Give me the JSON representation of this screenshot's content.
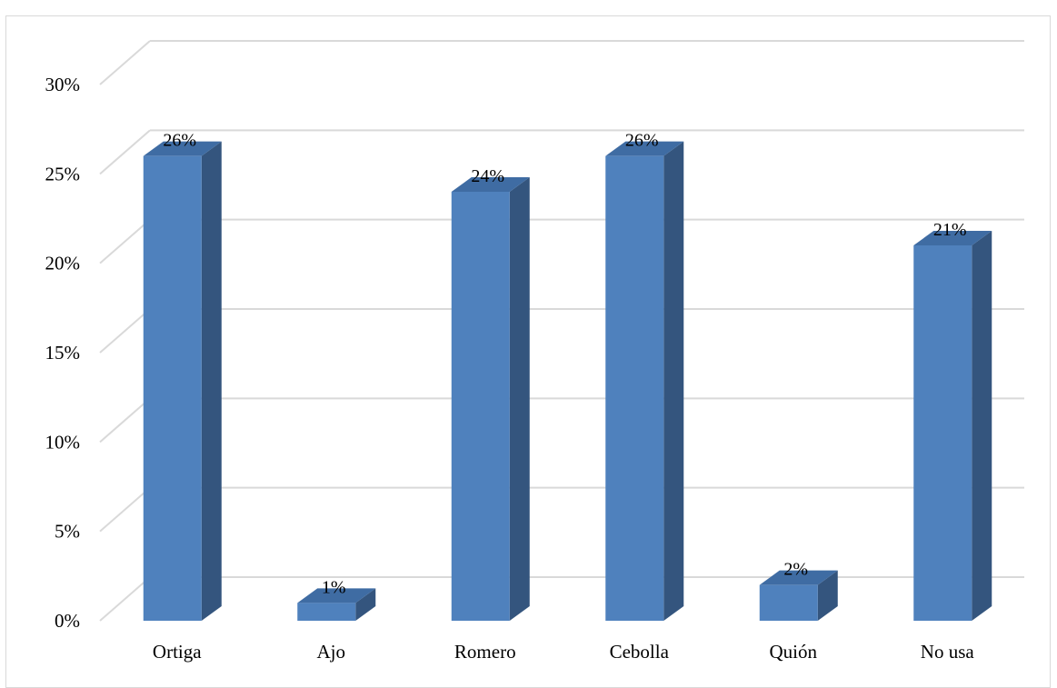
{
  "chart_data": {
    "type": "bar",
    "style": "3d-column",
    "categories": [
      "Ortiga",
      "Ajo",
      "Romero",
      "Cebolla",
      "Quión",
      "No usa"
    ],
    "values": [
      26,
      1,
      24,
      26,
      2,
      21
    ],
    "data_labels": [
      "26%",
      "1%",
      "24%",
      "26%",
      "2%",
      "21%"
    ],
    "yticks": [
      "0%",
      "5%",
      "10%",
      "15%",
      "20%",
      "25%",
      "30%"
    ],
    "ylim": [
      0,
      30
    ],
    "title": "",
    "xlabel": "",
    "ylabel": "",
    "grid": true,
    "legend": "none",
    "colors": {
      "bar_front": "#4f81bd",
      "bar_side": "#34557e",
      "bar_top": "#3f6ca3",
      "grid": "#d9d9d9"
    }
  }
}
